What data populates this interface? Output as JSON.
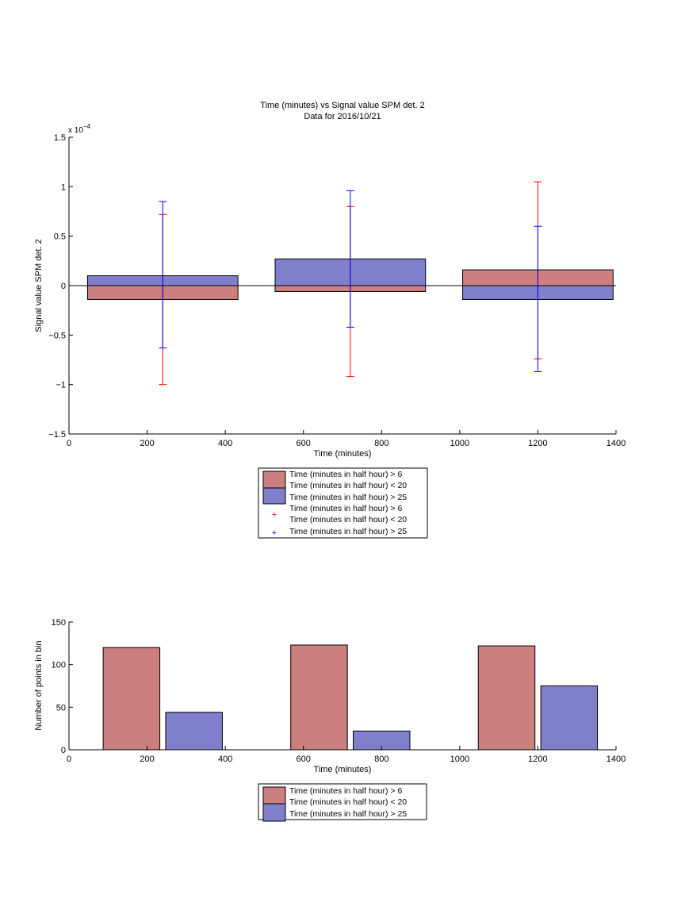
{
  "chart_data": [
    {
      "type": "bar",
      "title": "Time (minutes) vs Signal value SPM det. 2",
      "subtitle": "Data for 2016/10/21",
      "xlabel": "Time (minutes)",
      "ylabel": "Signal value SPM det. 2",
      "exponent_label": "x 10",
      "exponent_power": "−4",
      "xlim": [
        0,
        1400
      ],
      "ylim": [
        -1.5,
        1.5
      ],
      "xticks": [
        "0",
        "200",
        "400",
        "600",
        "800",
        "1000",
        "1200",
        "1400"
      ],
      "yticks": [
        "−1.5",
        "−1",
        "−0.5",
        "0",
        "0.5",
        "1",
        "1.5"
      ],
      "x": [
        240,
        720,
        1200
      ],
      "bar_width": 385,
      "series": [
        {
          "name": "Time (minutes in half hour) > 6\nTime (minutes in half hour) < 20",
          "color": "#cc7f7f",
          "values": [
            -0.14,
            -0.06,
            0.16
          ],
          "error_lower": [
            -1.0,
            -0.92,
            -0.74
          ],
          "error_upper": [
            0.72,
            0.8,
            1.05
          ],
          "error_color": "#ff0000"
        },
        {
          "name": "Time (minutes in half hour) > 25",
          "color": "#7f7fcc",
          "values": [
            0.1,
            0.27,
            -0.14
          ],
          "error_lower": [
            -0.63,
            -0.42,
            -0.87
          ],
          "error_upper": [
            0.85,
            0.96,
            0.6
          ],
          "error_color": "#0000ff"
        }
      ],
      "legend": {
        "entries": [
          "Time (minutes in half hour) > 6",
          "Time (minutes in half hour) < 20",
          "Time (minutes in half hour) > 25",
          "Time (minutes in half hour) > 6",
          "Time (minutes in half hour) < 20",
          "Time (minutes in half hour) > 25"
        ],
        "placement": "below"
      },
      "grid": false
    },
    {
      "type": "bar",
      "xlabel": "Time (minutes)",
      "ylabel": "Number of points in bin",
      "xlim": [
        0,
        1400
      ],
      "ylim": [
        0,
        150
      ],
      "xticks": [
        "0",
        "200",
        "400",
        "600",
        "800",
        "1000",
        "1200",
        "1400"
      ],
      "yticks": [
        "0",
        "50",
        "100",
        "150"
      ],
      "bar_width": 145,
      "series": [
        {
          "name": "Time (minutes in half hour) > 6\nTime (minutes in half hour) < 20",
          "color": "#cc7f7f",
          "x": [
            160,
            640,
            1120
          ],
          "values": [
            120,
            123,
            122
          ]
        },
        {
          "name": "Time (minutes in half hour) > 25",
          "color": "#7f7fcc",
          "x": [
            320,
            800,
            1280
          ],
          "values": [
            44,
            22,
            75
          ]
        }
      ],
      "legend": {
        "entries": [
          "Time (minutes in half hour) > 6",
          "Time (minutes in half hour) < 20",
          "Time (minutes in half hour) > 25"
        ],
        "placement": "below"
      },
      "grid": false
    }
  ]
}
